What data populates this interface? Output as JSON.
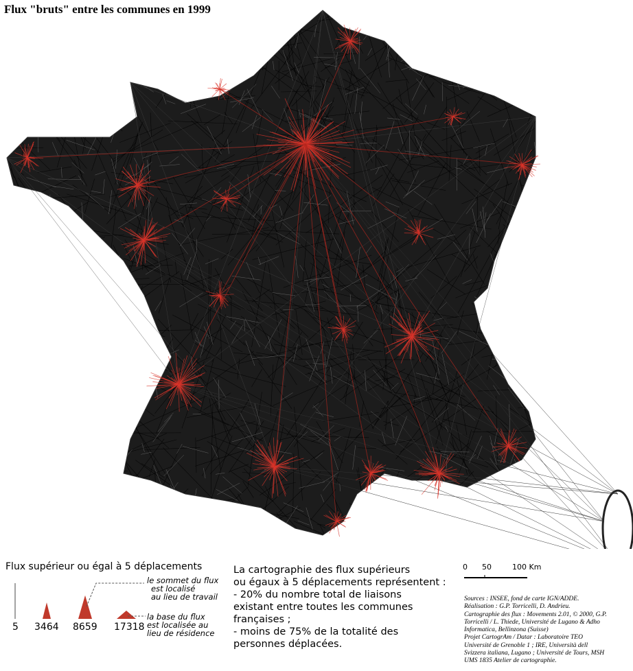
{
  "title": "Flux \"bruts\" entre les communes en 1999",
  "legend": {
    "title": "Flux supérieur ou égal à 5 déplacements",
    "values": [
      5,
      3464,
      8659,
      17318
    ],
    "top_note": [
      "le sommet du flux",
      "est localisé",
      "au lieu de travail"
    ],
    "base_note": [
      "la base du flux",
      "est localisée au",
      "lieu de résidence"
    ]
  },
  "description": [
    "La cartographie des flux supérieurs",
    "ou égaux à 5 déplacements représentent :",
    "- 20% du nombre total de liaisons",
    "existant entre toutes les communes",
    "françaises ;",
    "- moins de 75% de la totalité des",
    "personnes déplacées."
  ],
  "scale_bar": [
    "0",
    "50",
    "100 Km"
  ],
  "sources": [
    "Sources : INSEE, fond de carte IGN/ADDE.",
    "Réalisation : G.P. Torricelli, D. Andrieu.",
    "Cartographie des flux : Movements 2.01, © 2000, G.P.",
    "Torricelli / L. Thiede, Université de Lugano & Adho",
    "Informatica, Bellinzona (Suisse)",
    "Projet CartogrAm / Datar : Laboratoire TEO",
    "Université de Grenoble 1 ; IRE, Università dell",
    "Svizzera italiana, Lugano ; Université de Tours, MSH",
    "UMS 1835 Atelier de cartographie."
  ]
}
